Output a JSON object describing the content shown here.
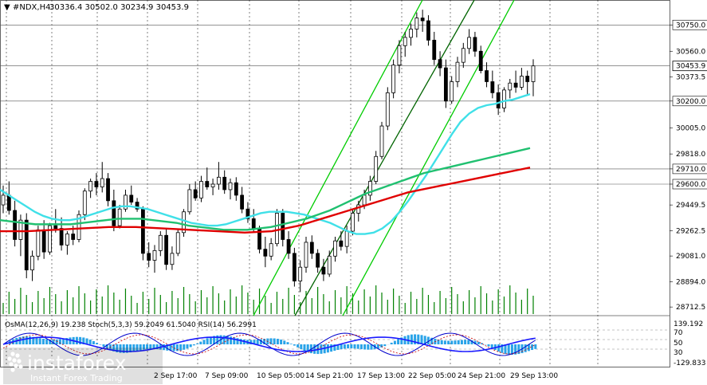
{
  "header": {
    "symbol_label": "#NDX,H4",
    "ohlc": "30336.4 30502.0 30234.9 30453.9",
    "close_marker": "▼"
  },
  "oscillator_header": "OsMA(12,26,9) 19.238  Stoch(5,3,3) 59.2049 61.5040  RSI(14) 56.2991",
  "watermark": {
    "brand": "instaforex",
    "tagline": "Instant Forex Trading"
  },
  "colors": {
    "price_bars": "#000000",
    "volume": "#008000",
    "ma_fast": "#40e0e8",
    "ma_mid": "#20c070",
    "ma_slow": "#e00000",
    "channel_outer": "#00cc00",
    "channel_inner": "#006400",
    "osma_hist": "#29a3e8",
    "stoch_main": "#0000cc",
    "stoch_signal": "#cc0000",
    "rsi": "#1a1aff"
  },
  "chart_data": {
    "type": "line",
    "instrument": "#NDX",
    "timeframe": "H4",
    "price_axis": {
      "ticks": [
        30750.0,
        30560.0,
        30373.5,
        30200.0,
        30005.0,
        29818.0,
        29710.0,
        29600.0,
        29449.5,
        29262.5,
        29081.0,
        28894.0,
        28712.5
      ],
      "tick_labels": [
        "30750.0",
        "30560.0",
        "30373.5",
        "30200.0",
        "30005.0",
        "29818.0",
        "29710.0",
        "29600.0",
        "29449.5",
        "29262.5",
        "29081.0",
        "28894.0",
        "28712.5"
      ],
      "highlighted": [
        "30750.0",
        "30200.0",
        "29710.0",
        "29600.0"
      ],
      "current_price": 30453.9,
      "range": [
        28650,
        30930
      ]
    },
    "horizontal_levels": [
      30750.0,
      30453.9,
      30200.0,
      29710.0,
      29600.0
    ],
    "x_tick_labels": [
      "2 Sep 17:00",
      "7 Sep 09:00",
      "10 Sep 05:00",
      "14 Sep 21:00",
      "17 Sep 13:00",
      "22 Sep 05:00",
      "24 Sep 21:00",
      "29 Sep 13:00"
    ],
    "candles": [
      [
        29450,
        29590,
        29390,
        29520
      ],
      [
        29520,
        29620,
        29380,
        29410
      ],
      [
        29410,
        29480,
        29150,
        29200
      ],
      [
        29200,
        29380,
        29080,
        29340
      ],
      [
        29340,
        29390,
        28920,
        28980
      ],
      [
        28980,
        29120,
        28900,
        29080
      ],
      [
        29080,
        29300,
        29050,
        29270
      ],
      [
        29270,
        29340,
        29060,
        29110
      ],
      [
        29110,
        29320,
        29090,
        29300
      ],
      [
        29300,
        29420,
        29250,
        29280
      ],
      [
        29280,
        29360,
        29120,
        29160
      ],
      [
        29160,
        29260,
        29090,
        29240
      ],
      [
        29240,
        29300,
        29160,
        29200
      ],
      [
        29200,
        29410,
        29180,
        29380
      ],
      [
        29380,
        29570,
        29340,
        29550
      ],
      [
        29550,
        29640,
        29500,
        29620
      ],
      [
        29620,
        29680,
        29520,
        29580
      ],
      [
        29580,
        29760,
        29540,
        29640
      ],
      [
        29640,
        29680,
        29440,
        29480
      ],
      [
        29480,
        29560,
        29260,
        29300
      ],
      [
        29300,
        29450,
        29280,
        29420
      ],
      [
        29420,
        29560,
        29400,
        29520
      ],
      [
        29520,
        29590,
        29450,
        29470
      ],
      [
        29470,
        29500,
        29400,
        29420
      ],
      [
        29420,
        29440,
        29050,
        29100
      ],
      [
        29100,
        29180,
        29000,
        29050
      ],
      [
        29050,
        29160,
        28960,
        29120
      ],
      [
        29120,
        29260,
        29080,
        29230
      ],
      [
        29230,
        29280,
        28980,
        29020
      ],
      [
        29020,
        29150,
        28980,
        29100
      ],
      [
        29100,
        29280,
        29080,
        29250
      ],
      [
        29250,
        29420,
        29220,
        29400
      ],
      [
        29400,
        29600,
        29380,
        29560
      ],
      [
        29560,
        29620,
        29480,
        29500
      ],
      [
        29500,
        29660,
        29470,
        29620
      ],
      [
        29620,
        29720,
        29560,
        29580
      ],
      [
        29580,
        29640,
        29520,
        29600
      ],
      [
        29600,
        29760,
        29560,
        29650
      ],
      [
        29650,
        29700,
        29530,
        29560
      ],
      [
        29560,
        29640,
        29490,
        29610
      ],
      [
        29610,
        29650,
        29480,
        29520
      ],
      [
        29520,
        29580,
        29390,
        29420
      ],
      [
        29420,
        29470,
        29320,
        29350
      ],
      [
        29350,
        29420,
        29250,
        29280
      ],
      [
        29280,
        29300,
        29100,
        29130
      ],
      [
        29130,
        29220,
        29000,
        29080
      ],
      [
        29080,
        29210,
        29050,
        29170
      ],
      [
        29170,
        29420,
        29150,
        29390
      ],
      [
        29390,
        29420,
        29150,
        29200
      ],
      [
        29200,
        29260,
        29060,
        29100
      ],
      [
        29100,
        29140,
        28860,
        28900
      ],
      [
        28900,
        29050,
        28820,
        29000
      ],
      [
        29000,
        29220,
        28960,
        29180
      ],
      [
        29180,
        29230,
        29060,
        29100
      ],
      [
        29100,
        29130,
        28960,
        29000
      ],
      [
        29000,
        29060,
        28900,
        28950
      ],
      [
        28950,
        29120,
        28930,
        29080
      ],
      [
        29080,
        29220,
        29040,
        29190
      ],
      [
        29190,
        29260,
        29120,
        29150
      ],
      [
        29150,
        29300,
        29100,
        29260
      ],
      [
        29260,
        29420,
        29230,
        29390
      ],
      [
        29390,
        29480,
        29330,
        29450
      ],
      [
        29450,
        29560,
        29420,
        29520
      ],
      [
        29520,
        29660,
        29480,
        29620
      ],
      [
        29620,
        29840,
        29600,
        29800
      ],
      [
        29800,
        30050,
        29780,
        30020
      ],
      [
        30020,
        30300,
        29990,
        30260
      ],
      [
        30260,
        30500,
        30220,
        30460
      ],
      [
        30460,
        30640,
        30400,
        30600
      ],
      [
        30600,
        30700,
        30520,
        30660
      ],
      [
        30660,
        30760,
        30600,
        30720
      ],
      [
        30720,
        30840,
        30660,
        30800
      ],
      [
        30800,
        30860,
        30700,
        30780
      ],
      [
        30780,
        30820,
        30600,
        30640
      ],
      [
        30640,
        30700,
        30460,
        30500
      ],
      [
        30500,
        30560,
        30380,
        30440
      ],
      [
        30440,
        30500,
        30150,
        30200
      ],
      [
        30200,
        30380,
        30180,
        30340
      ],
      [
        30340,
        30520,
        30300,
        30480
      ],
      [
        30480,
        30620,
        30440,
        30580
      ],
      [
        30580,
        30720,
        30540,
        30660
      ],
      [
        30660,
        30700,
        30520,
        30560
      ],
      [
        30560,
        30600,
        30400,
        30420
      ],
      [
        30420,
        30480,
        30300,
        30340
      ],
      [
        30340,
        30420,
        30220,
        30260
      ],
      [
        30260,
        30320,
        30100,
        30150
      ],
      [
        30150,
        30300,
        30120,
        30280
      ],
      [
        30280,
        30360,
        30220,
        30330
      ],
      [
        30330,
        30420,
        30260,
        30300
      ],
      [
        30300,
        30440,
        30280,
        30380
      ],
      [
        30380,
        30420,
        30240,
        30340
      ],
      [
        30340,
        30502,
        30235,
        30454
      ]
    ],
    "ma_fast": [
      29560,
      29520,
      29480,
      29440,
      29400,
      29370,
      29350,
      29340,
      29340,
      29350,
      29370,
      29390,
      29410,
      29430,
      29440,
      29440,
      29430,
      29420,
      29400,
      29380,
      29360,
      29340,
      29320,
      29310,
      29300,
      29300,
      29310,
      29330,
      29350,
      29370,
      29390,
      29400,
      29400,
      29400,
      29390,
      29380,
      29360,
      29340,
      29320,
      29290,
      29260,
      29240,
      29240,
      29250,
      29280,
      29330,
      29400,
      29480,
      29570,
      29660,
      29760,
      29860,
      29960,
      30050,
      30110,
      30150,
      30170,
      30180,
      30200,
      30210,
      30230,
      30250
    ],
    "ma_mid": [
      29340,
      29330,
      29320,
      29310,
      29310,
      29310,
      29310,
      29320,
      29330,
      29340,
      29350,
      29350,
      29350,
      29340,
      29330,
      29320,
      29300,
      29290,
      29280,
      29270,
      29270,
      29270,
      29280,
      29290,
      29310,
      29330,
      29350,
      29380,
      29410,
      29450,
      29490,
      29530,
      29560,
      29590,
      29620,
      29650,
      29680,
      29700,
      29720,
      29740,
      29760,
      29780,
      29800,
      29820,
      29840,
      29860
    ],
    "ma_slow": [
      29260,
      29260,
      29260,
      29265,
      29270,
      29275,
      29280,
      29285,
      29290,
      29290,
      29290,
      29285,
      29280,
      29275,
      29270,
      29265,
      29260,
      29255,
      29250,
      29255,
      29260,
      29280,
      29300,
      29330,
      29360,
      29390,
      29420,
      29450,
      29480,
      29510,
      29540,
      29560,
      29580,
      29600,
      29620,
      29640,
      29660,
      29680,
      29700,
      29720
    ],
    "oscillator": {
      "type": "bar",
      "osma_value": 19.238,
      "stoch_main": 59.2049,
      "stoch_signal": 61.504,
      "rsi": 56.2991,
      "levels": [
        70,
        50,
        30
      ],
      "level_labels": [
        "70",
        "50",
        "30"
      ],
      "scale_top": "139.192",
      "scale_bottom": "-129.833"
    }
  }
}
